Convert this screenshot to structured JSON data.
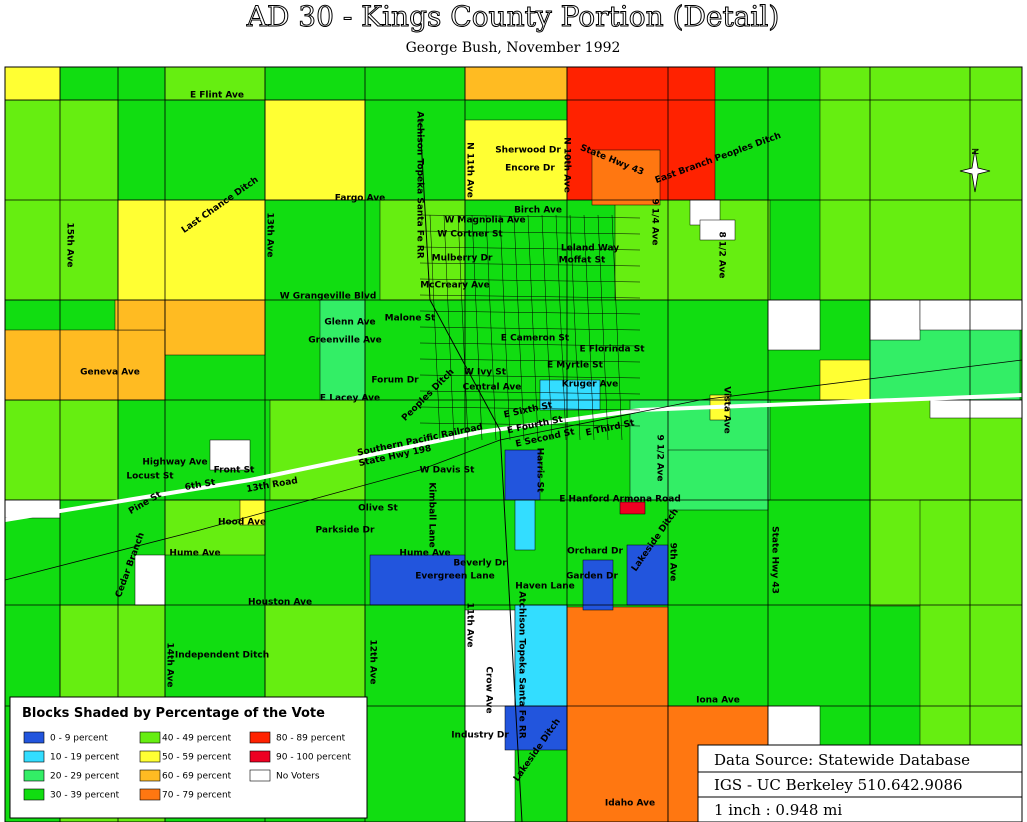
{
  "header": {
    "title": "AD 30 - Kings County Portion (Detail)",
    "subtitle": "George Bush, November 1992"
  },
  "compass": "N",
  "streets": [
    "E Flint Ave",
    "Atchison Topeka Santa Fe RR",
    "N 11th Ave",
    "Sherwood Dr",
    "Encore Dr",
    "N 10th Ave",
    "State Hwy 43",
    "East Branch Peoples Ditch",
    "Fargo Ave",
    "Last Chance Ditch",
    "13th Ave",
    "15th Ave",
    "W Magnolia Ave",
    "W Cortner St",
    "Birch Ave",
    "9 1/4 Ave",
    "8 1/2 Ave",
    "Leland Way",
    "Mulberry Dr",
    "Moffat St",
    "McCreary Ave",
    "W Grangeville Blvd",
    "Glenn Ave",
    "Malone St",
    "Greenville Ave",
    "Geneva Ave",
    "Forum Dr",
    "E Lacey Ave",
    "Peoples Ditch",
    "Central Ave",
    "W Ivy St",
    "E Myrtle St",
    "E Florinda St",
    "E Cameron St",
    "Kruger Ave",
    "Southern Pacific Railroad",
    "State Hwy 198",
    "Highway Ave",
    "Locust St",
    "Front St",
    "W Davis St",
    "E Sixth St",
    "E Fourth St",
    "E Second St",
    "E Third St",
    "6th St",
    "13th Road",
    "Pine St",
    "E Hanford Armona Road",
    "Olive St",
    "Parkside Dr",
    "Hood Ave",
    "Kimball Lane",
    "Harris St",
    "Hume Ave",
    "Hume Ave",
    "Beverly Dr",
    "Evergreen Lane",
    "Orchard Dr",
    "Garden Dr",
    "Haven Lane",
    "Houston Ave",
    "Lakeside Ditch",
    "9th Ave",
    "State Hwy 43",
    "Cedar Branch",
    "Independent Ditch",
    "14th Ave",
    "12th Ave",
    "11th Ave",
    "Crow Ave",
    "Atchison Topeka Santa Fe RR",
    "Iona Ave",
    "Industry Dr",
    "Lakeside Ditch",
    "Idaho Ave",
    "9 1/2 Ave",
    "Vista Ave"
  ],
  "legend": {
    "title": "Blocks Shaded by Percentage of the Vote",
    "items": [
      {
        "label": "0 - 9 percent",
        "color": "#2255dd"
      },
      {
        "label": "10 - 19 percent",
        "color": "#33ddff"
      },
      {
        "label": "20 - 29 percent",
        "color": "#33ee66"
      },
      {
        "label": "30 - 39 percent",
        "color": "#11dd11"
      },
      {
        "label": "40 - 49 percent",
        "color": "#66ee11"
      },
      {
        "label": "50 - 59 percent",
        "color": "#ffff33"
      },
      {
        "label": "60 - 69 percent",
        "color": "#ffbb22"
      },
      {
        "label": "70 - 79 percent",
        "color": "#ff7711"
      },
      {
        "label": "80 - 89 percent",
        "color": "#ff2200"
      },
      {
        "label": "90 - 100 percent",
        "color": "#ee0022"
      },
      {
        "label": "No Voters",
        "color": "#ffffff"
      }
    ]
  },
  "source": {
    "line1": "Data Source: Statewide Database",
    "line2": "IGS - UC Berkeley 510.642.9086",
    "line3": "1 inch : 0.948 mi"
  }
}
